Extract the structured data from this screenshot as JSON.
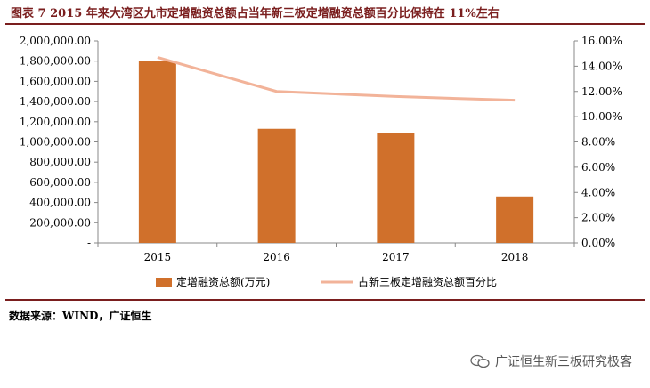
{
  "header": {
    "title": "图表 7  2015 年来大湾区九市定增融资总额占当年新三板定增融资总额百分比保持在 11%左右"
  },
  "chart_data": {
    "type": "bar",
    "title": "",
    "categories": [
      "2015",
      "2016",
      "2017",
      "2018"
    ],
    "series": [
      {
        "name": "定增融资总额(万元)",
        "kind": "bar",
        "axis": "left",
        "color": "#d0702b",
        "values": [
          1800000,
          1130000,
          1090000,
          460000
        ]
      },
      {
        "name": "占新三板定增融资总额百分比",
        "kind": "line",
        "axis": "right",
        "color": "#f2b399",
        "values": [
          14.7,
          12.0,
          11.6,
          11.3
        ]
      }
    ],
    "left_axis": {
      "range": [
        0,
        2000000
      ],
      "tick_labels": [
        "-",
        "200,000.00",
        "400,000.00",
        "600,000.00",
        "800,000.00",
        "1,000,000.00",
        "1,200,000.00",
        "1,400,000.00",
        "1,600,000.00",
        "1,800,000.00",
        "2,000,000.00"
      ]
    },
    "right_axis": {
      "range": [
        0,
        16
      ],
      "tick_labels": [
        "0.00%",
        "2.00%",
        "4.00%",
        "6.00%",
        "8.00%",
        "10.00%",
        "12.00%",
        "14.00%",
        "16.00%"
      ]
    },
    "grid": false,
    "legend_position": "bottom"
  },
  "footer": {
    "source": "数据来源：WIND，广证恒生",
    "watermark": "广证恒生新三板研究极客"
  }
}
